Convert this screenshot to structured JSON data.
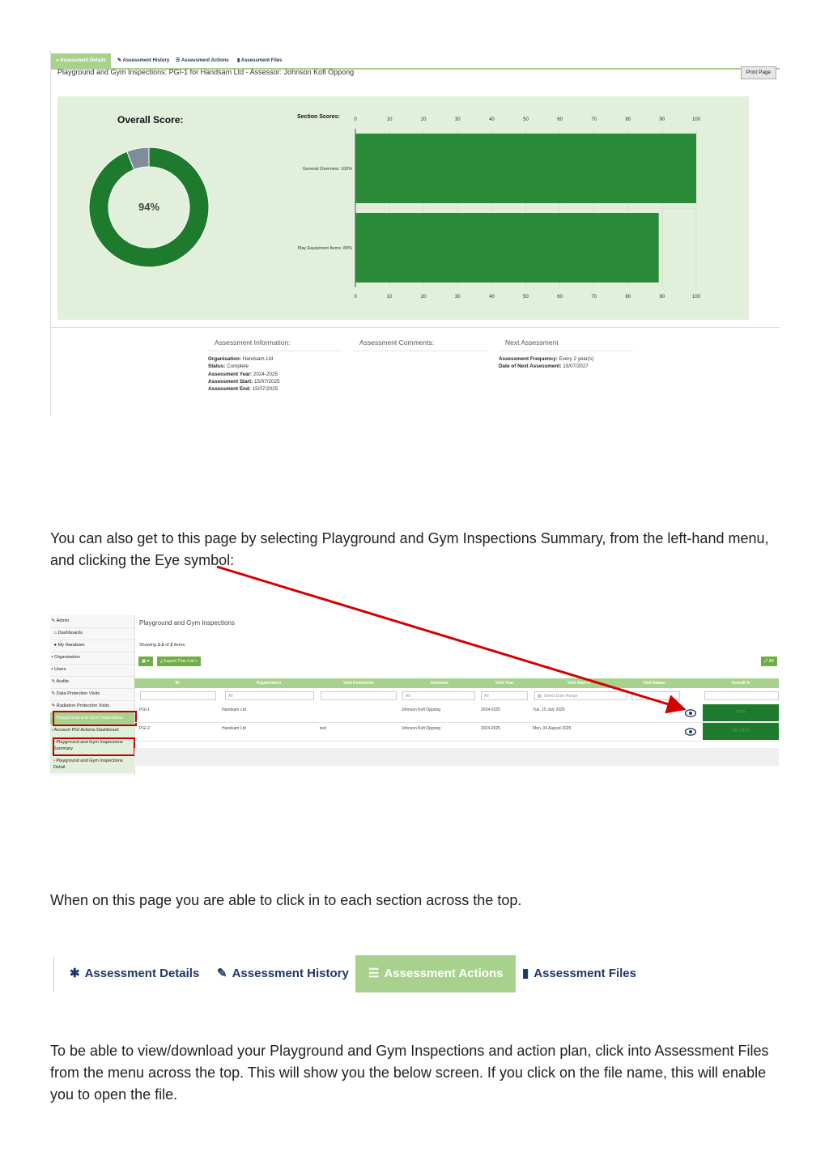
{
  "shot1": {
    "tabs": [
      {
        "icon": "circle-icon",
        "label": "Assessment Details"
      },
      {
        "icon": "pencil-icon",
        "label": "Assessment History"
      },
      {
        "icon": "list-icon",
        "label": "Assessment Actions"
      },
      {
        "icon": "file-icon",
        "label": "Assessment Files"
      }
    ],
    "title": "Playground and Gym Inspections: PGI-1 for Handsam Ltd - Assessor: Johnson Kofi Oppong",
    "print_label": "Print Page",
    "overall_title": "Overall Score:",
    "overall_label": "94%",
    "section_title": "Section Scores:",
    "info": {
      "assessment_head": "Assessment Information:",
      "comments_head": "Assessment Comments:",
      "next_head": "Next Assessment",
      "organisation_label": "Organisation:",
      "organisation": "Handsam Ltd",
      "status_label": "Status:",
      "status": "Complete",
      "year_label": "Assessment Year:",
      "year": "2024-2025",
      "start_label": "Assessment Start:",
      "start": "15/07/2025",
      "end_label": "Assessment End:",
      "end": "15/07/2025",
      "frequency_label": "Assessment Frequency:",
      "frequency": "Every 2 year(s)",
      "next_date_label": "Date of Next Assessment:",
      "next_date": "15/07/2027"
    }
  },
  "chart_data": [
    {
      "type": "pie",
      "title": "Overall Score:",
      "labels": [
        "Score",
        "Remaining"
      ],
      "values": [
        94,
        6
      ],
      "center_label": "94%",
      "colors": [
        "#1e7b2e",
        "#7f8c9a"
      ]
    },
    {
      "type": "bar",
      "orientation": "horizontal",
      "title": "Section Scores:",
      "categories": [
        "General Overview: 100%",
        "Play Equipment Items: 89%"
      ],
      "values": [
        100,
        89
      ],
      "xlim": [
        0,
        100
      ],
      "ticks": [
        "0",
        "10",
        "20",
        "30",
        "40",
        "50",
        "60",
        "70",
        "80",
        "90",
        "100"
      ],
      "color": "#2a8a3a"
    }
  ],
  "para1": "You can also get to this page by selecting Playground and Gym Inspections  Summary, from the left-hand menu, and clicking the Eye symbol:",
  "shot2": {
    "sidebar": [
      {
        "icon": "wrench-icon",
        "label": "Admin"
      },
      {
        "icon": "home-icon",
        "label": "Dashboards"
      },
      {
        "icon": "user-icon",
        "label": "My Handsam"
      },
      {
        "icon": "building-icon",
        "label": "Organisation"
      },
      {
        "icon": "users-icon",
        "label": "Users"
      },
      {
        "icon": "wrench-icon",
        "label": "Audits"
      },
      {
        "icon": "wrench-icon",
        "label": "Data Protection Visits"
      },
      {
        "icon": "wrench-icon",
        "label": "Radiation Protection Visits"
      },
      {
        "icon": "wrench-icon",
        "label": "Playground and Gym Inspections"
      },
      {
        "icon": "chevron-right-icon",
        "label": "Account PGI Actions Dashboard"
      },
      {
        "icon": "chevron-right-icon",
        "label": "Playground and Gym Inspections Summary"
      },
      {
        "icon": "chevron-right-icon",
        "label": "Playground and Gym Inspections Detail"
      }
    ],
    "page_title": "Playground and Gym Inspections",
    "showing_prefix": "Showing ",
    "showing_range": "1-2",
    "showing_mid": " of ",
    "showing_total": "2",
    "showing_suffix": " items.",
    "export_label": "Export This List",
    "all_label": "All",
    "columns": [
      "ID",
      "Organisation",
      "Visit Comments",
      "Assessor",
      "Visit Year",
      "Visit Start D",
      "Visit Status",
      "Overall %"
    ],
    "filters": {
      "all": "All",
      "date_range": "Select Date Range"
    },
    "rows": [
      {
        "id": "PGI-1",
        "org": "Handsam Ltd",
        "comments": "",
        "assessor": "Johnson Kofi Oppong",
        "year": "2024-2025",
        "start": "Tue, 15 July 2025",
        "status": "",
        "score": "94%"
      },
      {
        "id": "PGI-2",
        "org": "Handsam Ltd",
        "comments": "test",
        "assessor": "Johnson Kofi Oppong",
        "year": "2024-2025",
        "start": "Mon, 04 August 2025",
        "status": "",
        "score": "88.84%"
      }
    ]
  },
  "para2": "When on this page you are able to click in to each section across the top.",
  "shot3": {
    "tabs": [
      {
        "icon": "asterisk-icon",
        "glyph": "✱",
        "label": "Assessment Details"
      },
      {
        "icon": "pencil-icon",
        "glyph": "✎",
        "label": "Assessment History"
      },
      {
        "icon": "list-icon",
        "glyph": "☰",
        "label": "Assessment Actions"
      },
      {
        "icon": "file-icon",
        "glyph": "▮",
        "label": "Assessment Files"
      }
    ]
  },
  "para3": "To be able to view/download your Playground and Gym Inspections and action plan, click into Assessment Files from the menu across the top. This will show you the below screen. If you click on the file name, this will enable you to open the file."
}
